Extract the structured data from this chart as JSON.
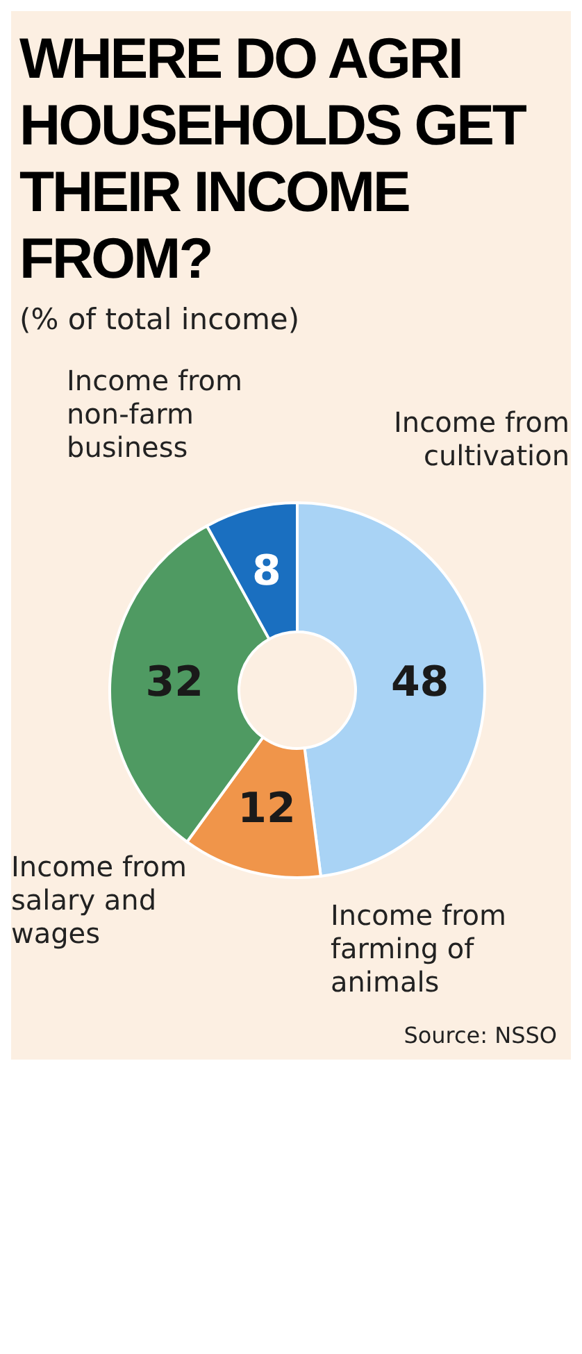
{
  "chart_data": {
    "type": "donut",
    "title": "WHERE DO AGRI HOUSEHOLDS GET THEIR INCOME FROM?",
    "subtitle": "(% of total income)",
    "categories": [
      "Income from cultivation",
      "Income from farming of animals",
      "Income from salary and wages",
      "Income from non-farm business"
    ],
    "values": [
      48,
      12,
      32,
      8
    ],
    "colors": [
      "#a9d3f5",
      "#f0954a",
      "#4f9a62",
      "#1a6fc0"
    ],
    "data_labels": true,
    "annotations": [
      "Source: NSSO"
    ]
  }
}
